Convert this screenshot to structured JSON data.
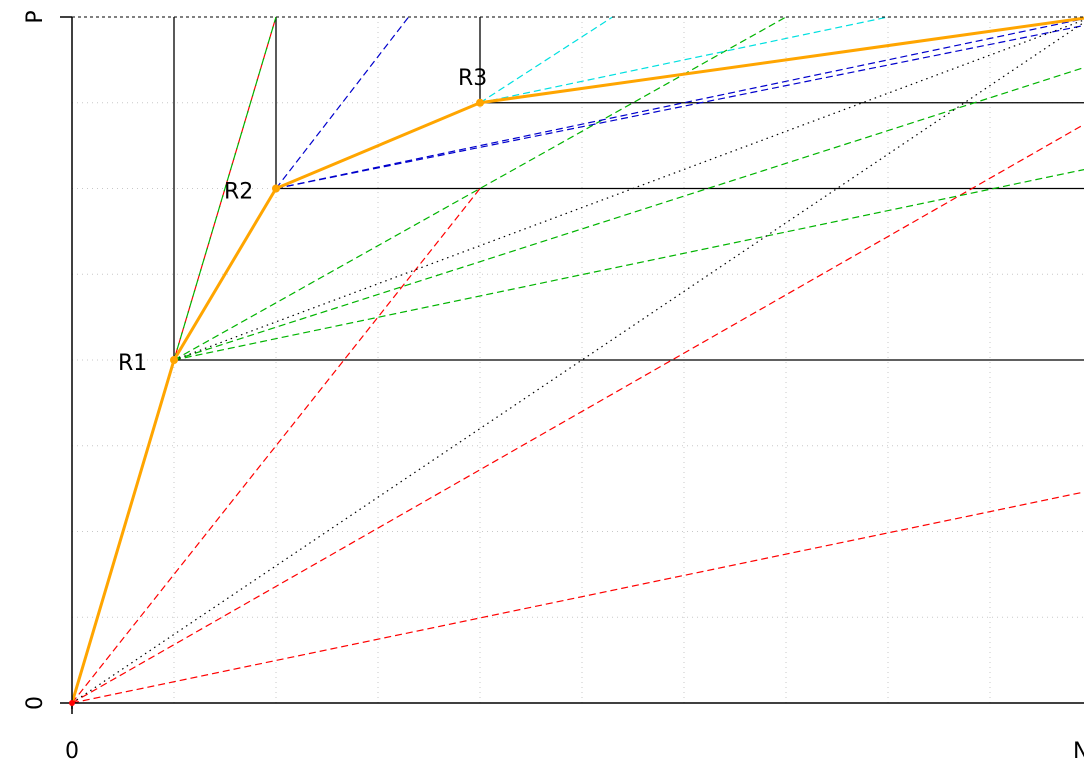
{
  "chart_data": {
    "type": "line",
    "title": "",
    "xlabel": "N",
    "ylabel": "P",
    "xlim": [
      0,
      1
    ],
    "ylim": [
      0,
      1
    ],
    "x_tick_labels": [
      "0",
      "N"
    ],
    "y_tick_labels": [
      "0",
      "P"
    ],
    "grid": true,
    "colors": {
      "axis": "#000000",
      "grid": "#c8c8c8",
      "hull": "#ffa500",
      "red": "#ff0000",
      "green": "#00b400",
      "blue": "#0000cc",
      "cyan": "#00e0e0",
      "diagonal": "#000000"
    },
    "points": [
      {
        "label": "R1",
        "x": 0.1,
        "y": 0.5
      },
      {
        "label": "R2",
        "x": 0.2,
        "y": 0.75
      },
      {
        "label": "R3",
        "x": 0.4,
        "y": 0.875
      }
    ],
    "hull_series": {
      "color": "orange",
      "x": [
        0,
        0.1,
        0.2,
        0.4,
        1
      ],
      "y": [
        0,
        0.5,
        0.75,
        0.875,
        1
      ]
    },
    "vertical_guides": [
      {
        "x": 0.1,
        "y0": 0.5,
        "y1": 1
      },
      {
        "x": 0.2,
        "y0": 0.75,
        "y1": 1
      },
      {
        "x": 0.4,
        "y0": 0.875,
        "y1": 1
      }
    ],
    "horizontal_guides": [
      {
        "y": 0.5,
        "x0": 0.1,
        "x1": 1
      },
      {
        "y": 0.75,
        "x0": 0.2,
        "x1": 1
      },
      {
        "y": 0.875,
        "x0": 0.4,
        "x1": 1
      }
    ],
    "isometrics": [
      {
        "color": "red",
        "style": "dashed",
        "x": [
          0,
          0.2
        ],
        "y": [
          0,
          1
        ]
      },
      {
        "color": "red",
        "style": "dashed",
        "x": [
          0,
          0.4
        ],
        "y": [
          0,
          0.75
        ]
      },
      {
        "color": "red",
        "style": "dashed",
        "x": [
          0,
          1
        ],
        "y": [
          0,
          0.85
        ]
      },
      {
        "color": "red",
        "style": "dashed",
        "x": [
          0,
          1
        ],
        "y": [
          0,
          0.31
        ]
      },
      {
        "color": "green",
        "style": "dashed",
        "x": [
          0.1,
          0.2
        ],
        "y": [
          0.5,
          1
        ]
      },
      {
        "color": "green",
        "style": "dashed",
        "x": [
          0.1,
          0.7
        ],
        "y": [
          0.5,
          1
        ]
      },
      {
        "color": "green",
        "style": "dashed",
        "x": [
          0.1,
          1
        ],
        "y": [
          0.5,
          0.93
        ]
      },
      {
        "color": "green",
        "style": "dashed",
        "x": [
          0.1,
          1
        ],
        "y": [
          0.5,
          0.78
        ]
      },
      {
        "color": "blue",
        "style": "dashed",
        "x": [
          0.2,
          0.33
        ],
        "y": [
          0.75,
          1
        ]
      },
      {
        "color": "blue",
        "style": "dashed",
        "x": [
          0.2,
          1
        ],
        "y": [
          0.75,
          0.99
        ]
      },
      {
        "color": "blue",
        "style": "dashed",
        "x": [
          0.2,
          1
        ],
        "y": [
          0.75,
          1
        ]
      },
      {
        "color": "cyan",
        "style": "dashed",
        "x": [
          0.4,
          0.53
        ],
        "y": [
          0.875,
          1
        ]
      },
      {
        "color": "cyan",
        "style": "dashed",
        "x": [
          0.4,
          0.8
        ],
        "y": [
          0.875,
          1
        ]
      },
      {
        "color": "black",
        "style": "dotted",
        "x": [
          0,
          1
        ],
        "y": [
          0,
          1
        ]
      },
      {
        "color": "black",
        "style": "dotted",
        "x": [
          0.1,
          1
        ],
        "y": [
          0.5,
          1
        ]
      }
    ]
  }
}
